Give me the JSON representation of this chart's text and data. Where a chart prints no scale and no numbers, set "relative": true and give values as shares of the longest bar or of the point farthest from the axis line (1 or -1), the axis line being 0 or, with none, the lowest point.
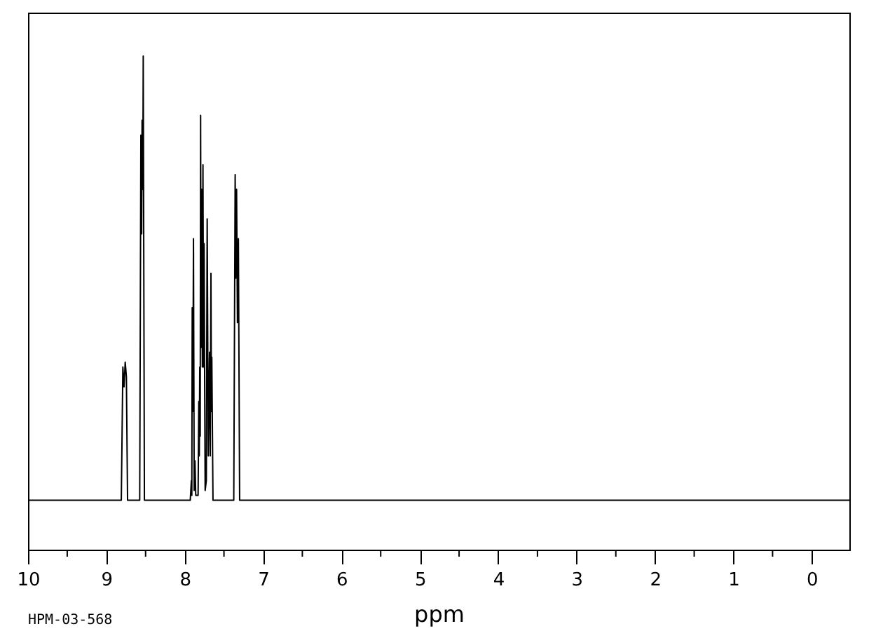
{
  "chart_data": {
    "type": "line",
    "xlabel": "ppm",
    "annotations": [
      "HPM-03-568"
    ],
    "relative": true,
    "color": "#000000",
    "x": [
      10,
      8.81,
      8.79,
      8.775,
      8.76,
      8.745,
      8.73,
      8.575,
      8.56,
      8.55,
      8.545,
      8.535,
      8.53,
      8.515,
      7.93,
      7.916,
      7.91,
      7.905,
      7.897,
      7.889,
      7.88,
      7.87,
      7.86,
      7.83,
      7.821,
      7.815,
      7.809,
      7.803,
      7.798,
      7.792,
      7.786,
      7.776,
      7.768,
      7.761,
      7.754,
      7.74,
      7.725,
      7.714,
      7.7,
      7.684,
      7.675,
      7.666,
      7.66,
      7.655,
      7.64,
      7.375,
      7.357,
      7.35,
      7.339,
      7.328,
      7.316,
      7.3,
      -0.48
    ],
    "values": [
      0.1,
      0.1,
      0.37,
      0.33,
      0.38,
      0.35,
      0.1,
      0.1,
      0.84,
      0.64,
      0.87,
      0.73,
      1,
      0.1,
      0.1,
      0.14,
      0.11,
      0.49,
      0.28,
      0.63,
      0.12,
      0.18,
      0.11,
      0.11,
      0.3,
      0.19,
      0.37,
      0.23,
      0.88,
      0.41,
      0.73,
      0.37,
      0.78,
      0.37,
      0.62,
      0.12,
      0.14,
      0.67,
      0.19,
      0.4,
      0.19,
      0.56,
      0.28,
      0.39,
      0.1,
      0.1,
      0.76,
      0.55,
      0.73,
      0.46,
      0.63,
      0.1,
      0.1
    ],
    "xlim": [
      10,
      -0.48
    ],
    "xticks": [
      10,
      {
        "value": 9.5,
        "label": null
      },
      9,
      {
        "value": 8.5,
        "label": null
      },
      8,
      {
        "value": 7.5,
        "label": null
      },
      7,
      {
        "value": 6.5,
        "label": null
      },
      6,
      {
        "value": 5.5,
        "label": null
      },
      5,
      {
        "value": 4.5,
        "label": null
      },
      4,
      {
        "value": 3.5,
        "label": null
      },
      3,
      {
        "value": 2.5,
        "label": null
      },
      2,
      {
        "value": 1.5,
        "label": null
      },
      1,
      {
        "value": 0.5,
        "label": null
      },
      0
    ]
  }
}
